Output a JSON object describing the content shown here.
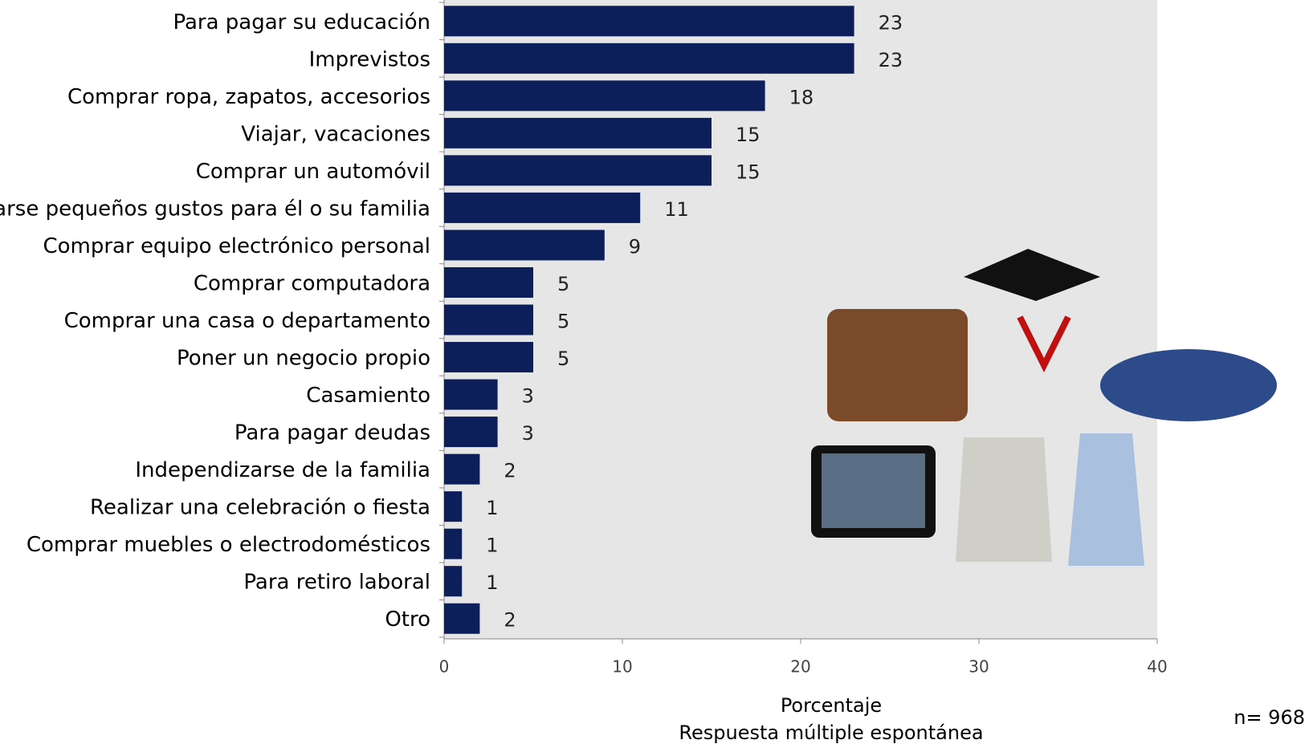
{
  "chart_data": {
    "type": "hbar",
    "categories": [
      "Para pagar su educación",
      "Imprevistos",
      "Comprar ropa, zapatos, accesorios",
      "Viajar, vacaciones",
      "Comprar un automóvil",
      "Darse pequeños gustos para él o su familia",
      "Comprar equipo electrónico personal",
      "Comprar computadora",
      "Comprar una casa o departamento",
      "Poner un negocio propio",
      "Casamiento",
      "Para pagar deudas",
      "Independizarse de la familia",
      "Realizar una celebración o fiesta",
      "Comprar muebles o electrodomésticos",
      "Para retiro laboral",
      "Otro"
    ],
    "values": [
      23,
      23,
      18,
      15,
      15,
      11,
      9,
      5,
      5,
      5,
      3,
      3,
      2,
      1,
      1,
      1,
      2
    ],
    "color": "#0c1f5a",
    "xlim": [
      0,
      40
    ],
    "xticks": [
      0,
      10,
      20,
      30,
      40
    ],
    "xlabel": "Porcentaje",
    "xlabel_note": "Respuesta múltiple espontánea",
    "note": "n= 968"
  }
}
